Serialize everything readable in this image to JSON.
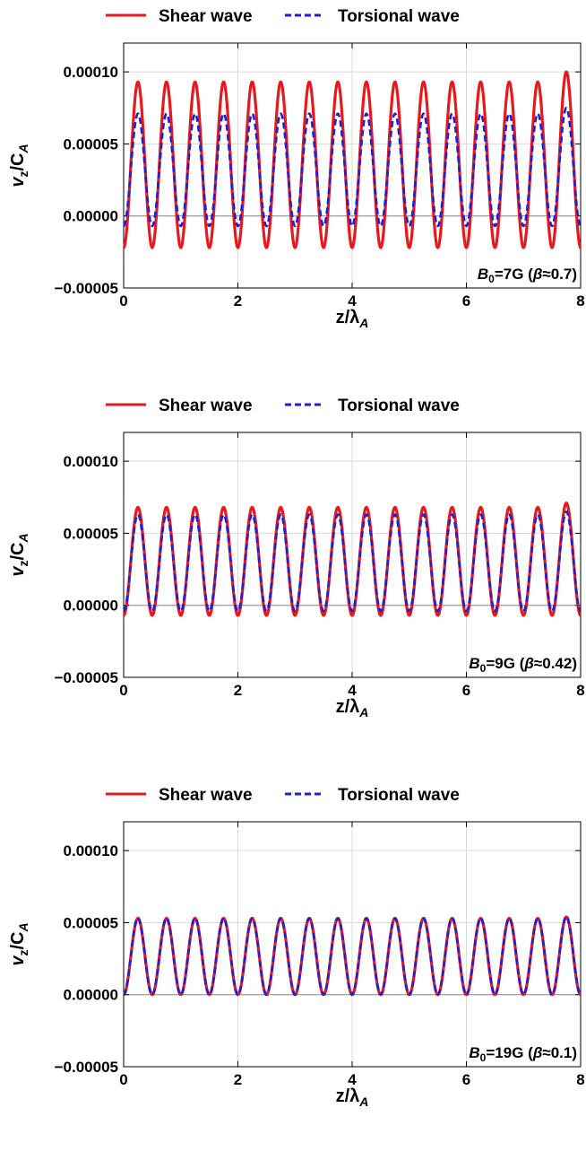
{
  "chart_data": [
    {
      "type": "line",
      "legend": {
        "placement": "top",
        "entries": [
          {
            "label": "Shear wave",
            "color": "#e41a1c",
            "style": "solid"
          },
          {
            "label": "Torsional wave",
            "color": "#1f1fd6",
            "style": "dashed"
          }
        ]
      },
      "xlabel_main": "z/λ",
      "xlabel_sub": "A",
      "ylabel_main": "v",
      "ylabel_sub1": "z",
      "ylabel_mid": "/C",
      "ylabel_sub2": "A",
      "xlim": [
        0,
        8
      ],
      "ylim": [
        -5e-05,
        0.00012
      ],
      "xticks": [
        0,
        2,
        4,
        6,
        8
      ],
      "xtick_labels": [
        "0",
        "2",
        "4",
        "6",
        "8"
      ],
      "yticks": [
        -5e-05,
        0,
        5e-05,
        0.0001
      ],
      "ytick_labels": [
        "−0.00005",
        "0.00000",
        "0.00005",
        "0.00010"
      ],
      "grid": true,
      "annotation": {
        "b": "B",
        "sub": "0",
        "rest": "=7G (",
        "beta": "β",
        "tail": "≈0.7)"
      },
      "series": [
        {
          "name": "Shear wave",
          "color": "#e41a1c",
          "style": "solid",
          "period": 0.5,
          "min": -2.2e-05,
          "max": 9.3e-05,
          "last_peak": 0.0001
        },
        {
          "name": "Torsional wave",
          "color": "#1f1fd6",
          "style": "dashed",
          "period": 0.5,
          "min": -7e-06,
          "max": 7.1e-05,
          "last_peak": 7.5e-05
        }
      ]
    },
    {
      "type": "line",
      "legend": {
        "placement": "top",
        "entries": [
          {
            "label": "Shear wave",
            "color": "#e41a1c",
            "style": "solid"
          },
          {
            "label": "Torsional wave",
            "color": "#1f1fd6",
            "style": "dashed"
          }
        ]
      },
      "xlabel_main": "z/λ",
      "xlabel_sub": "A",
      "ylabel_main": "v",
      "ylabel_sub1": "z",
      "ylabel_mid": "/C",
      "ylabel_sub2": "A",
      "xlim": [
        0,
        8
      ],
      "ylim": [
        -5e-05,
        0.00012
      ],
      "xticks": [
        0,
        2,
        4,
        6,
        8
      ],
      "xtick_labels": [
        "0",
        "2",
        "4",
        "6",
        "8"
      ],
      "yticks": [
        -5e-05,
        0,
        5e-05,
        0.0001
      ],
      "ytick_labels": [
        "−0.00005",
        "0.00000",
        "0.00005",
        "0.00010"
      ],
      "grid": true,
      "annotation": {
        "b": "B",
        "sub": "0",
        "rest": "=9G (",
        "beta": "β",
        "tail": "≈0.42)"
      },
      "series": [
        {
          "name": "Shear wave",
          "color": "#e41a1c",
          "style": "solid",
          "period": 0.5,
          "min": -7e-06,
          "max": 6.8e-05,
          "last_peak": 7.1e-05
        },
        {
          "name": "Torsional wave",
          "color": "#1f1fd6",
          "style": "dashed",
          "period": 0.5,
          "min": -4e-06,
          "max": 6.3e-05,
          "last_peak": 6.5e-05
        }
      ]
    },
    {
      "type": "line",
      "legend": {
        "placement": "top",
        "entries": [
          {
            "label": "Shear wave",
            "color": "#e41a1c",
            "style": "solid"
          },
          {
            "label": "Torsional wave",
            "color": "#1f1fd6",
            "style": "dashed"
          }
        ]
      },
      "xlabel_main": "z/λ",
      "xlabel_sub": "A",
      "ylabel_main": "v",
      "ylabel_sub1": "z",
      "ylabel_mid": "/C",
      "ylabel_sub2": "A",
      "xlim": [
        0,
        8
      ],
      "ylim": [
        -5e-05,
        0.00012
      ],
      "xticks": [
        0,
        2,
        4,
        6,
        8
      ],
      "xtick_labels": [
        "0",
        "2",
        "4",
        "6",
        "8"
      ],
      "yticks": [
        -5e-05,
        0,
        5e-05,
        0.0001
      ],
      "ytick_labels": [
        "−0.00005",
        "0.00000",
        "0.00005",
        "0.00010"
      ],
      "grid": true,
      "annotation": {
        "b": "B",
        "sub": "0",
        "rest": "=19G (",
        "beta": "β",
        "tail": "≈0.1)"
      },
      "series": [
        {
          "name": "Shear wave",
          "color": "#e41a1c",
          "style": "solid",
          "period": 0.5,
          "min": 0.0,
          "max": 5.3e-05,
          "last_peak": 5.4e-05
        },
        {
          "name": "Torsional wave",
          "color": "#1f1fd6",
          "style": "dashed",
          "period": 0.5,
          "min": 0.0,
          "max": 5.3e-05,
          "last_peak": 5.4e-05
        }
      ]
    }
  ]
}
